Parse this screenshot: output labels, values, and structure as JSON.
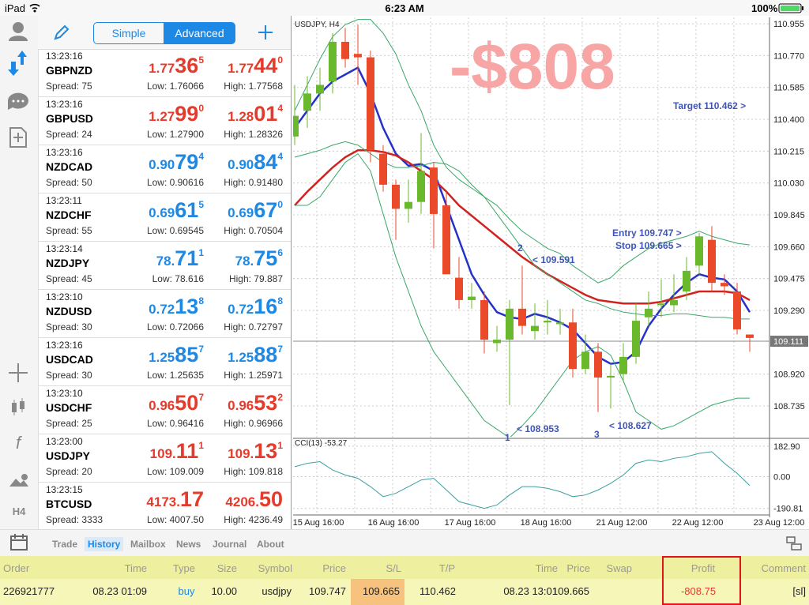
{
  "status": {
    "device": "iPad",
    "time": "6:23 AM",
    "battery": "100%"
  },
  "sidebar": {
    "timeframe": "H4"
  },
  "quotes": {
    "tabs": [
      "Simple",
      "Advanced"
    ],
    "rows": [
      {
        "time": "13:23:16",
        "symbol": "GBPNZD",
        "color": "#e53b2c",
        "bid": {
          "main": "1.77",
          "big": "36",
          "sup": "5"
        },
        "ask": {
          "main": "1.77",
          "big": "44",
          "sup": "0"
        },
        "spread": "Spread: 75",
        "low": "Low: 1.76066",
        "high": "High: 1.77568"
      },
      {
        "time": "13:23:16",
        "symbol": "GBPUSD",
        "color": "#e53b2c",
        "bid": {
          "main": "1.27",
          "big": "99",
          "sup": "0"
        },
        "ask": {
          "main": "1.28",
          "big": "01",
          "sup": "4"
        },
        "spread": "Spread: 24",
        "low": "Low: 1.27900",
        "high": "High: 1.28326"
      },
      {
        "time": "13:23:16",
        "symbol": "NZDCAD",
        "color": "#1e88e5",
        "bid": {
          "main": "0.90",
          "big": "79",
          "sup": "4"
        },
        "ask": {
          "main": "0.90",
          "big": "84",
          "sup": "4"
        },
        "spread": "Spread: 50",
        "low": "Low: 0.90616",
        "high": "High: 0.91480"
      },
      {
        "time": "13:23:11",
        "symbol": "NZDCHF",
        "color": "#1e88e5",
        "bid": {
          "main": "0.69",
          "big": "61",
          "sup": "5"
        },
        "ask": {
          "main": "0.69",
          "big": "67",
          "sup": "0"
        },
        "spread": "Spread: 55",
        "low": "Low: 0.69545",
        "high": "High: 0.70504"
      },
      {
        "time": "13:23:14",
        "symbol": "NZDJPY",
        "color": "#1e88e5",
        "bid": {
          "main": "78.",
          "big": "71",
          "sup": "1"
        },
        "ask": {
          "main": "78.",
          "big": "75",
          "sup": "6"
        },
        "spread": "Spread: 45",
        "low": "Low: 78.616",
        "high": "High: 79.887"
      },
      {
        "time": "13:23:10",
        "symbol": "NZDUSD",
        "color": "#1e88e5",
        "bid": {
          "main": "0.72",
          "big": "13",
          "sup": "8"
        },
        "ask": {
          "main": "0.72",
          "big": "16",
          "sup": "8"
        },
        "spread": "Spread: 30",
        "low": "Low: 0.72066",
        "high": "High: 0.72797"
      },
      {
        "time": "13:23:16",
        "symbol": "USDCAD",
        "color": "#1e88e5",
        "bid": {
          "main": "1.25",
          "big": "85",
          "sup": "7"
        },
        "ask": {
          "main": "1.25",
          "big": "88",
          "sup": "7"
        },
        "spread": "Spread: 30",
        "low": "Low: 1.25635",
        "high": "High: 1.25971"
      },
      {
        "time": "13:23:10",
        "symbol": "USDCHF",
        "color": "#e53b2c",
        "bid": {
          "main": "0.96",
          "big": "50",
          "sup": "7"
        },
        "ask": {
          "main": "0.96",
          "big": "53",
          "sup": "2"
        },
        "spread": "Spread: 25",
        "low": "Low: 0.96416",
        "high": "High: 0.96966"
      },
      {
        "time": "13:23:00",
        "symbol": "USDJPY",
        "color": "#e53b2c",
        "bid": {
          "main": "109.",
          "big": "11",
          "sup": "1"
        },
        "ask": {
          "main": "109.",
          "big": "13",
          "sup": "1"
        },
        "spread": "Spread: 20",
        "low": "Low: 109.009",
        "high": "High: 109.818"
      },
      {
        "time": "13:23:15",
        "symbol": "BTCUSD",
        "color": "#e53b2c",
        "bid": {
          "main": "4173.",
          "big": "17"
        },
        "ask": {
          "main": "4206.",
          "big": "50"
        },
        "spread": "Spread: 3333",
        "low": "Low: 4007.50",
        "high": "High: 4236.49"
      }
    ]
  },
  "chart_data": {
    "type": "candlestick",
    "title": "USDJPY, H4",
    "ylim": [
      108.556,
      110.992
    ],
    "yticks": [
      {
        "value": 110.955,
        "label": "110.955"
      },
      {
        "value": 110.77,
        "label": "110.770"
      },
      {
        "value": 110.585,
        "label": "110.585"
      },
      {
        "value": 110.4,
        "label": "110.400"
      },
      {
        "value": 110.215,
        "label": "110.215"
      },
      {
        "value": 110.03,
        "label": "110.030"
      },
      {
        "value": 109.845,
        "label": "109.845"
      },
      {
        "value": 109.66,
        "label": "109.660"
      },
      {
        "value": 109.475,
        "label": "109.475"
      },
      {
        "value": 109.29,
        "label": "109.290"
      },
      {
        "value": 108.92,
        "label": "108.920"
      },
      {
        "value": 108.735,
        "label": "108.735"
      }
    ],
    "current": {
      "value": 109.111,
      "label": "109.111"
    },
    "xticks": [
      "15 Aug 16:00",
      "16 Aug 16:00",
      "17 Aug 16:00",
      "18 Aug 16:00",
      "21 Aug 12:00",
      "22 Aug 12:00",
      "23 Aug 12:00"
    ],
    "up_color": "#6ab82c",
    "down_color": "#ea4a2a",
    "grid": true,
    "open": [
      110.3,
      110.45,
      110.55,
      110.62,
      110.85,
      110.78,
      110.76,
      110.2,
      110.02,
      109.88,
      109.92,
      110.12,
      109.9,
      109.48,
      109.35,
      109.35,
      109.1,
      109.12,
      109.3,
      109.17,
      109.22,
      109.21,
      109.22,
      108.95,
      109.05,
      108.9,
      108.92,
      109.02,
      109.25,
      109.32,
      109.32,
      109.4,
      109.55,
      109.7,
      109.45,
      109.4,
      109.15
    ],
    "high": [
      110.6,
      110.65,
      110.7,
      110.9,
      110.93,
      110.95,
      110.8,
      110.25,
      110.05,
      110.05,
      110.32,
      110.15,
      109.98,
      109.6,
      109.45,
      109.4,
      109.2,
      109.35,
      109.55,
      109.33,
      109.35,
      109.3,
      109.3,
      109.15,
      109.1,
      108.98,
      109.1,
      109.33,
      109.4,
      109.47,
      109.5,
      109.6,
      109.74,
      109.78,
      109.5,
      109.45,
      109.15
    ],
    "low": [
      110.25,
      110.35,
      110.45,
      110.55,
      110.7,
      110.6,
      110.15,
      109.98,
      109.7,
      109.8,
      109.85,
      109.65,
      109.5,
      109.3,
      109.3,
      109.04,
      109.05,
      108.74,
      109.15,
      109.12,
      109.15,
      109.15,
      108.9,
      108.92,
      108.7,
      108.72,
      108.88,
      108.98,
      109.2,
      109.25,
      109.28,
      109.35,
      109.5,
      109.4,
      109.38,
      109.15,
      109.05
    ],
    "close": [
      110.42,
      110.55,
      110.6,
      110.85,
      110.75,
      110.76,
      110.22,
      110.02,
      109.88,
      109.92,
      110.1,
      109.85,
      109.5,
      109.35,
      109.37,
      109.12,
      109.12,
      109.3,
      109.2,
      109.2,
      109.23,
      109.22,
      108.95,
      109.05,
      108.9,
      108.91,
      109.02,
      109.23,
      109.3,
      109.33,
      109.35,
      109.52,
      109.72,
      109.45,
      109.43,
      109.18,
      109.13
    ],
    "series": [
      {
        "color": "#2432c8",
        "values": [
          110.35,
          110.45,
          110.55,
          110.62,
          110.66,
          110.7,
          110.55,
          110.35,
          110.2,
          110.13,
          110.14,
          110.1,
          109.9,
          109.7,
          109.5,
          109.38,
          109.28,
          109.25,
          109.24,
          109.27,
          109.25,
          109.22,
          109.18,
          109.1,
          109.02,
          108.98,
          108.99,
          109.05,
          109.2,
          109.3,
          109.38,
          109.45,
          109.5,
          109.48,
          109.47,
          109.4,
          109.28
        ]
      },
      {
        "color": "#d0221e",
        "values": [
          109.9,
          109.98,
          110.05,
          110.12,
          110.18,
          110.22,
          110.22,
          110.21,
          110.19,
          110.15,
          110.1,
          110.05,
          109.98,
          109.9,
          109.84,
          109.78,
          109.72,
          109.66,
          109.6,
          109.55,
          109.5,
          109.46,
          109.42,
          109.38,
          109.35,
          109.34,
          109.33,
          109.33,
          109.33,
          109.34,
          109.36,
          109.38,
          109.4,
          109.4,
          109.4,
          109.39,
          109.35
        ]
      },
      {
        "color": "#3aa868",
        "values": [
          110.45,
          110.6,
          110.75,
          110.88,
          110.95,
          110.98,
          110.98,
          110.9,
          110.78,
          110.6,
          110.45,
          110.25,
          110.12,
          110.05,
          110.0,
          109.95,
          109.9,
          109.82,
          109.75,
          109.7,
          109.65,
          109.62,
          109.55,
          109.5,
          109.45,
          109.48,
          109.55,
          109.6,
          109.65,
          109.68,
          109.7,
          109.72,
          109.75,
          109.72,
          109.7,
          109.68,
          109.67
        ]
      },
      {
        "color": "#3aa868",
        "values": [
          110.18,
          110.2,
          110.22,
          110.25,
          110.27,
          110.25,
          110.2,
          110.15,
          110.12,
          110.12,
          110.13,
          110.15,
          110.14,
          110.1,
          110.02,
          109.95,
          109.85,
          109.75,
          109.65,
          109.55,
          109.5,
          109.45,
          109.4,
          109.35,
          109.33,
          109.3,
          109.28,
          109.27,
          109.26,
          109.26,
          109.27,
          109.27,
          109.26,
          109.25,
          109.25,
          109.24,
          109.24
        ]
      },
      {
        "color": "#3aa868",
        "values": [
          109.9,
          109.9,
          109.95,
          110.05,
          110.15,
          110.2,
          110.1,
          109.85,
          109.6,
          109.4,
          109.2,
          109.05,
          108.95,
          108.85,
          108.75,
          108.65,
          108.6,
          108.55,
          108.62,
          108.7,
          108.8,
          108.9,
          109.0,
          109.05,
          109.08,
          109.03,
          108.88,
          108.7,
          108.65,
          108.6,
          108.62,
          108.66,
          108.7,
          108.74,
          108.76,
          108.78,
          108.78
        ]
      }
    ],
    "cci": {
      "title": "CCI(13) -53.27",
      "color": "#3aa0a0",
      "ylim": [
        -230,
        230
      ],
      "yticks": [
        {
          "value": 182.9,
          "label": "182.90"
        },
        {
          "value": 0,
          "label": "0.00"
        },
        {
          "value": -190.81,
          "label": "-190.81"
        }
      ],
      "values": [
        60,
        80,
        90,
        40,
        10,
        -10,
        -60,
        -120,
        -100,
        -60,
        -20,
        -10,
        -80,
        -150,
        -170,
        -190,
        -170,
        -110,
        -60,
        -60,
        -70,
        -90,
        -120,
        -110,
        -80,
        -40,
        10,
        80,
        100,
        90,
        110,
        120,
        140,
        150,
        80,
        20,
        -53.27
      ]
    },
    "annotations": {
      "loss": "-$808",
      "target": "Target 110.462 >",
      "entry": "Entry 109.747 >",
      "stop": "Stop 109.665 >",
      "p2": "2",
      "p2v": "< 109.591",
      "p1": "1",
      "p1v": "< 108.953",
      "p3": "3",
      "p3v": "< 108.627"
    }
  },
  "tabs": [
    "Trade",
    "History",
    "Mailbox",
    "News",
    "Journal",
    "About"
  ],
  "table": {
    "headers": [
      "Order",
      "Time",
      "Type",
      "Size",
      "Symbol",
      "Price",
      "S/L",
      "T/P",
      "Time",
      "Price",
      "Swap",
      "Profit",
      "Comment"
    ],
    "row": {
      "order": "226921777",
      "time": "08.23 01:09",
      "type": "buy",
      "size": "10.00",
      "symbol": "usdjpy",
      "price": "109.747",
      "sl": "109.665",
      "tp": "110.462",
      "close_time": "08.23 13:01",
      "close_price": "109.665",
      "profit": "-808.75",
      "comment": "[sl]"
    }
  }
}
